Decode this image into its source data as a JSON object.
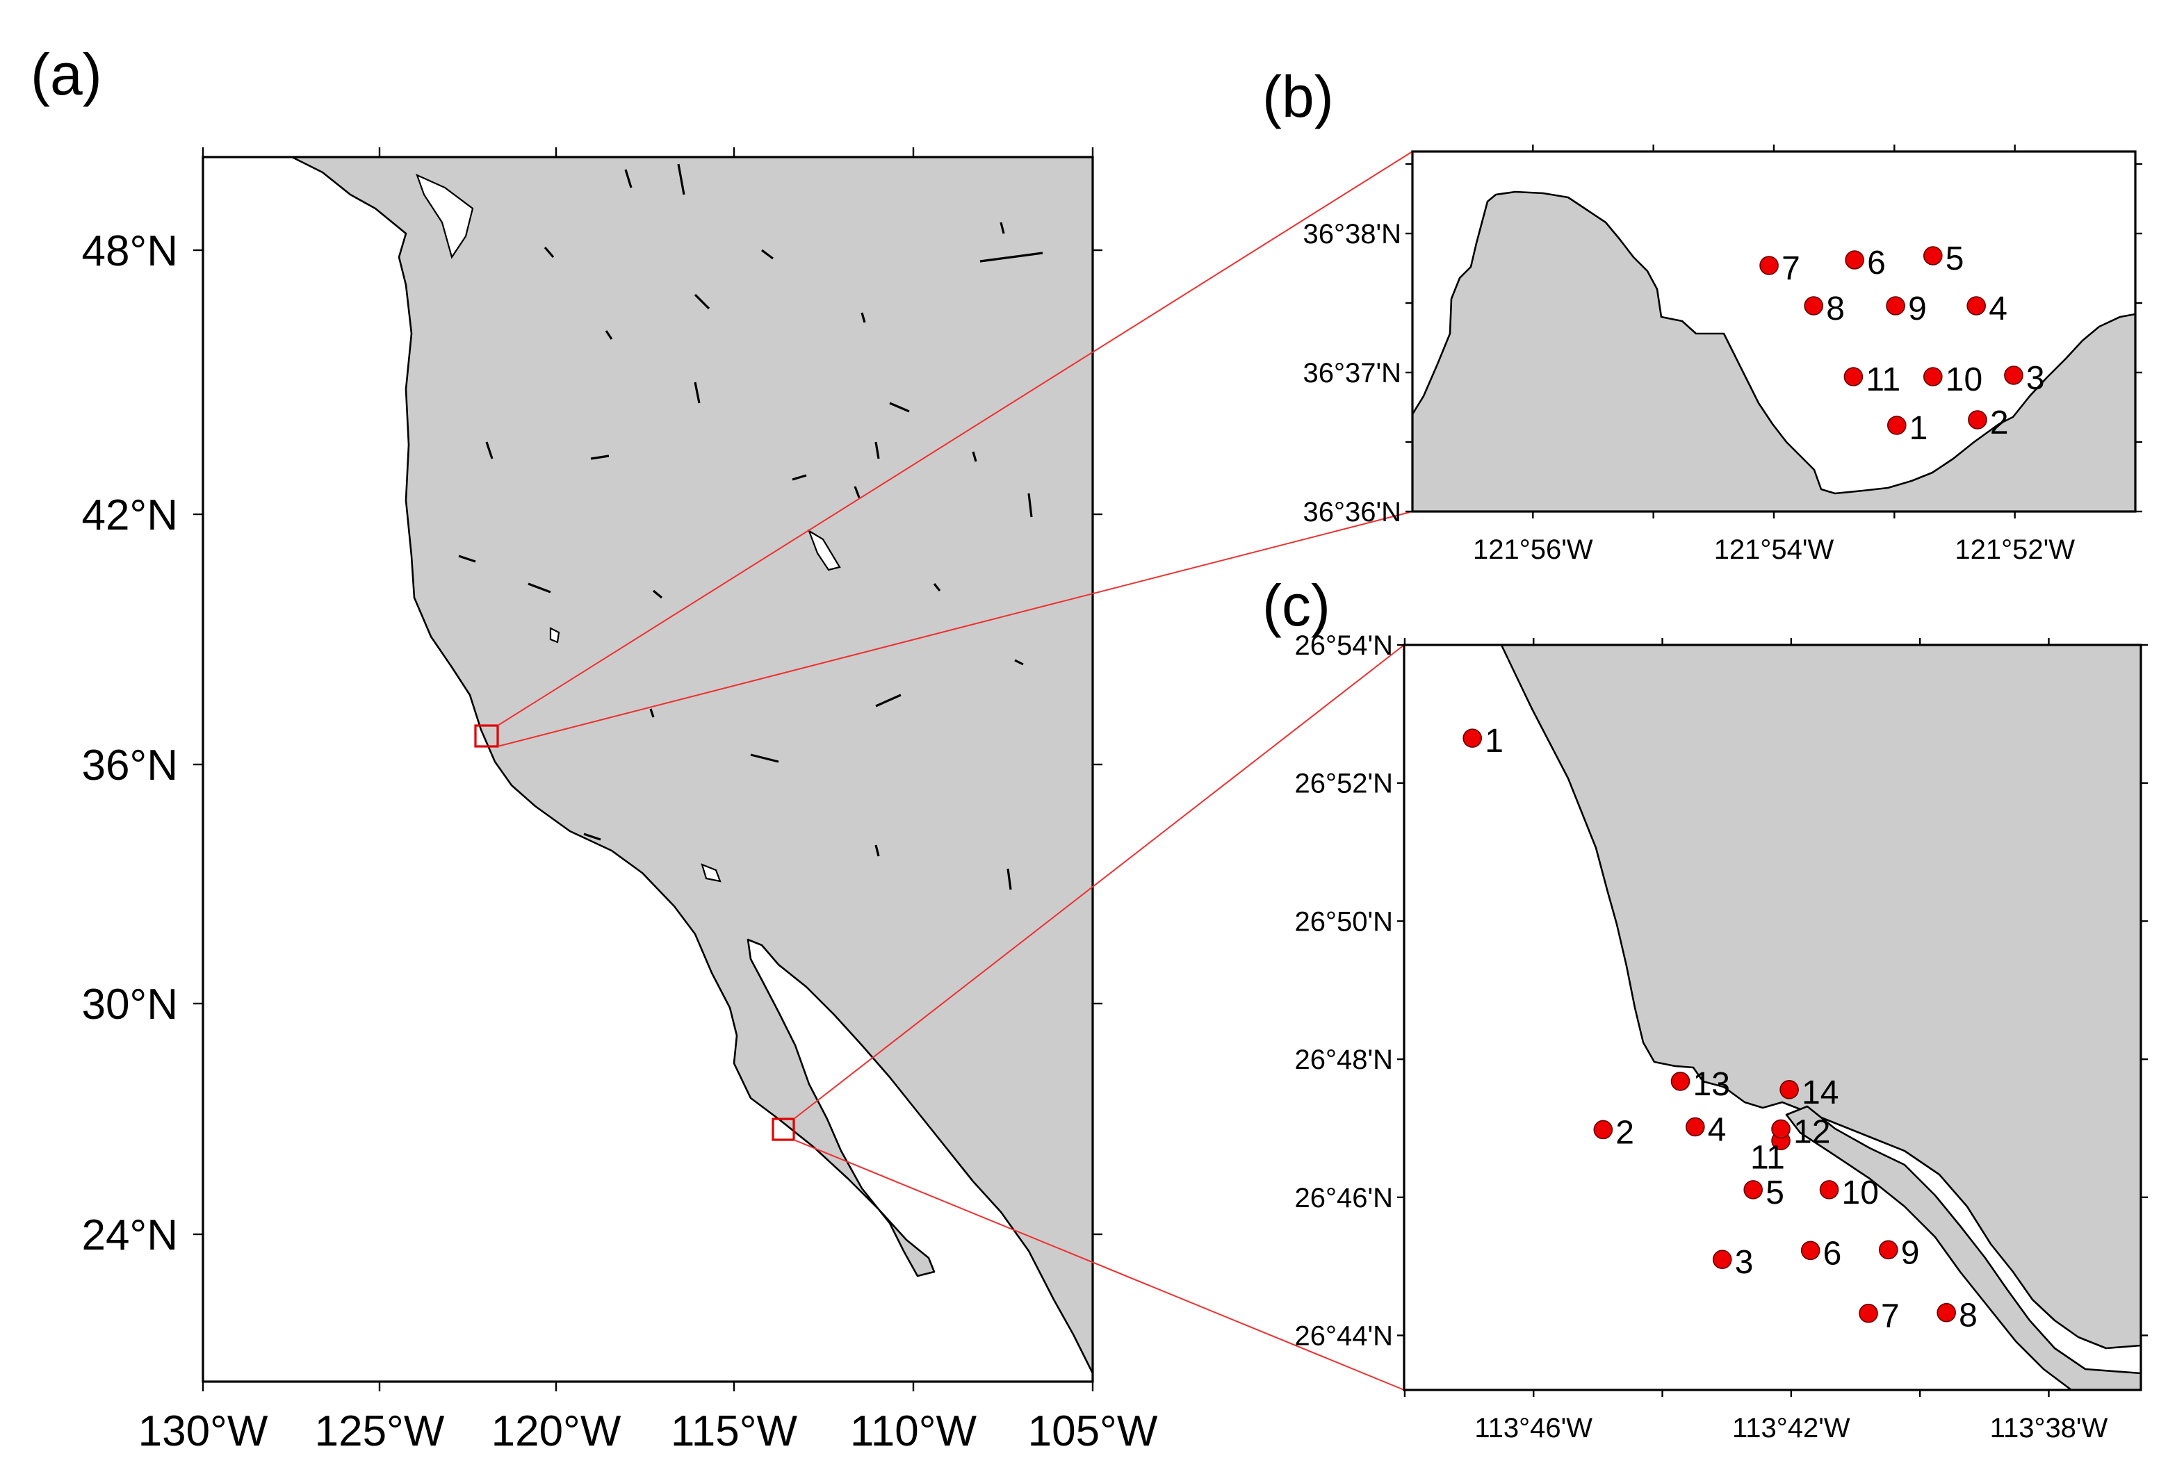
{
  "panels": {
    "a": {
      "letter": "(a)",
      "lat_labels": [
        "48°N",
        "42°N",
        "36°N",
        "30°N",
        "24°N"
      ],
      "lon_labels": [
        "130°W",
        "125°W",
        "120°W",
        "115°W",
        "110°W",
        "105°W"
      ]
    },
    "b": {
      "letter": "(b)",
      "lat_labels": [
        "36°38'N",
        "36°37'N",
        "36°36'N"
      ],
      "lon_labels": [
        "121°56'W",
        "121°54'W",
        "121°52'W"
      ],
      "lon_range_min_w": [
        57,
        51
      ],
      "lat_range_min_n": [
        36,
        38.59
      ],
      "stations": [
        {
          "id": "1",
          "lon_min": 52.98,
          "lat_min": 36.62
        },
        {
          "id": "2",
          "lon_min": 52.31,
          "lat_min": 36.66
        },
        {
          "id": "3",
          "lon_min": 52.01,
          "lat_min": 36.98
        },
        {
          "id": "4",
          "lon_min": 52.32,
          "lat_min": 37.48
        },
        {
          "id": "5",
          "lon_min": 52.68,
          "lat_min": 37.84
        },
        {
          "id": "6",
          "lon_min": 53.33,
          "lat_min": 37.81
        },
        {
          "id": "7",
          "lon_min": 54.04,
          "lat_min": 37.77
        },
        {
          "id": "8",
          "lon_min": 53.67,
          "lat_min": 37.48
        },
        {
          "id": "9",
          "lon_min": 52.99,
          "lat_min": 37.48
        },
        {
          "id": "10",
          "lon_min": 52.68,
          "lat_min": 36.97
        },
        {
          "id": "11",
          "lon_min": 53.34,
          "lat_min": 36.97
        }
      ]
    },
    "c": {
      "letter": "(c)",
      "lat_labels": [
        "26°54'N",
        "26°52'N",
        "26°50'N",
        "26°48'N",
        "26°46'N",
        "26°44'N"
      ],
      "lon_labels": [
        "113°46'W",
        "113°42'W",
        "113°38'W"
      ],
      "lon_range_min_w": [
        48.01,
        36.57
      ],
      "lat_range_min_n": [
        43.21,
        54
      ],
      "stations": [
        {
          "id": "1",
          "lon_min": 46.95,
          "lat_min": 52.65
        },
        {
          "id": "2",
          "lon_min": 44.92,
          "lat_min": 46.98
        },
        {
          "id": "3",
          "lon_min": 43.07,
          "lat_min": 45.1
        },
        {
          "id": "4",
          "lon_min": 43.49,
          "lat_min": 47.02
        },
        {
          "id": "5",
          "lon_min": 42.59,
          "lat_min": 46.11
        },
        {
          "id": "6",
          "lon_min": 41.7,
          "lat_min": 45.23
        },
        {
          "id": "7",
          "lon_min": 40.8,
          "lat_min": 44.32
        },
        {
          "id": "8",
          "lon_min": 39.59,
          "lat_min": 44.33
        },
        {
          "id": "9",
          "lon_min": 40.49,
          "lat_min": 45.24
        },
        {
          "id": "10",
          "lon_min": 41.41,
          "lat_min": 46.11
        },
        {
          "id": "11",
          "lon_min": 42.16,
          "lat_min": 46.82
        },
        {
          "id": "12",
          "lon_min": 42.16,
          "lat_min": 46.99
        },
        {
          "id": "13",
          "lon_min": 43.72,
          "lat_min": 47.68
        },
        {
          "id": "14",
          "lon_min": 42.03,
          "lat_min": 47.56
        }
      ]
    }
  },
  "colors": {
    "land": "#cccccc",
    "station": "#ee0000",
    "zoom_line": "#f03030"
  }
}
